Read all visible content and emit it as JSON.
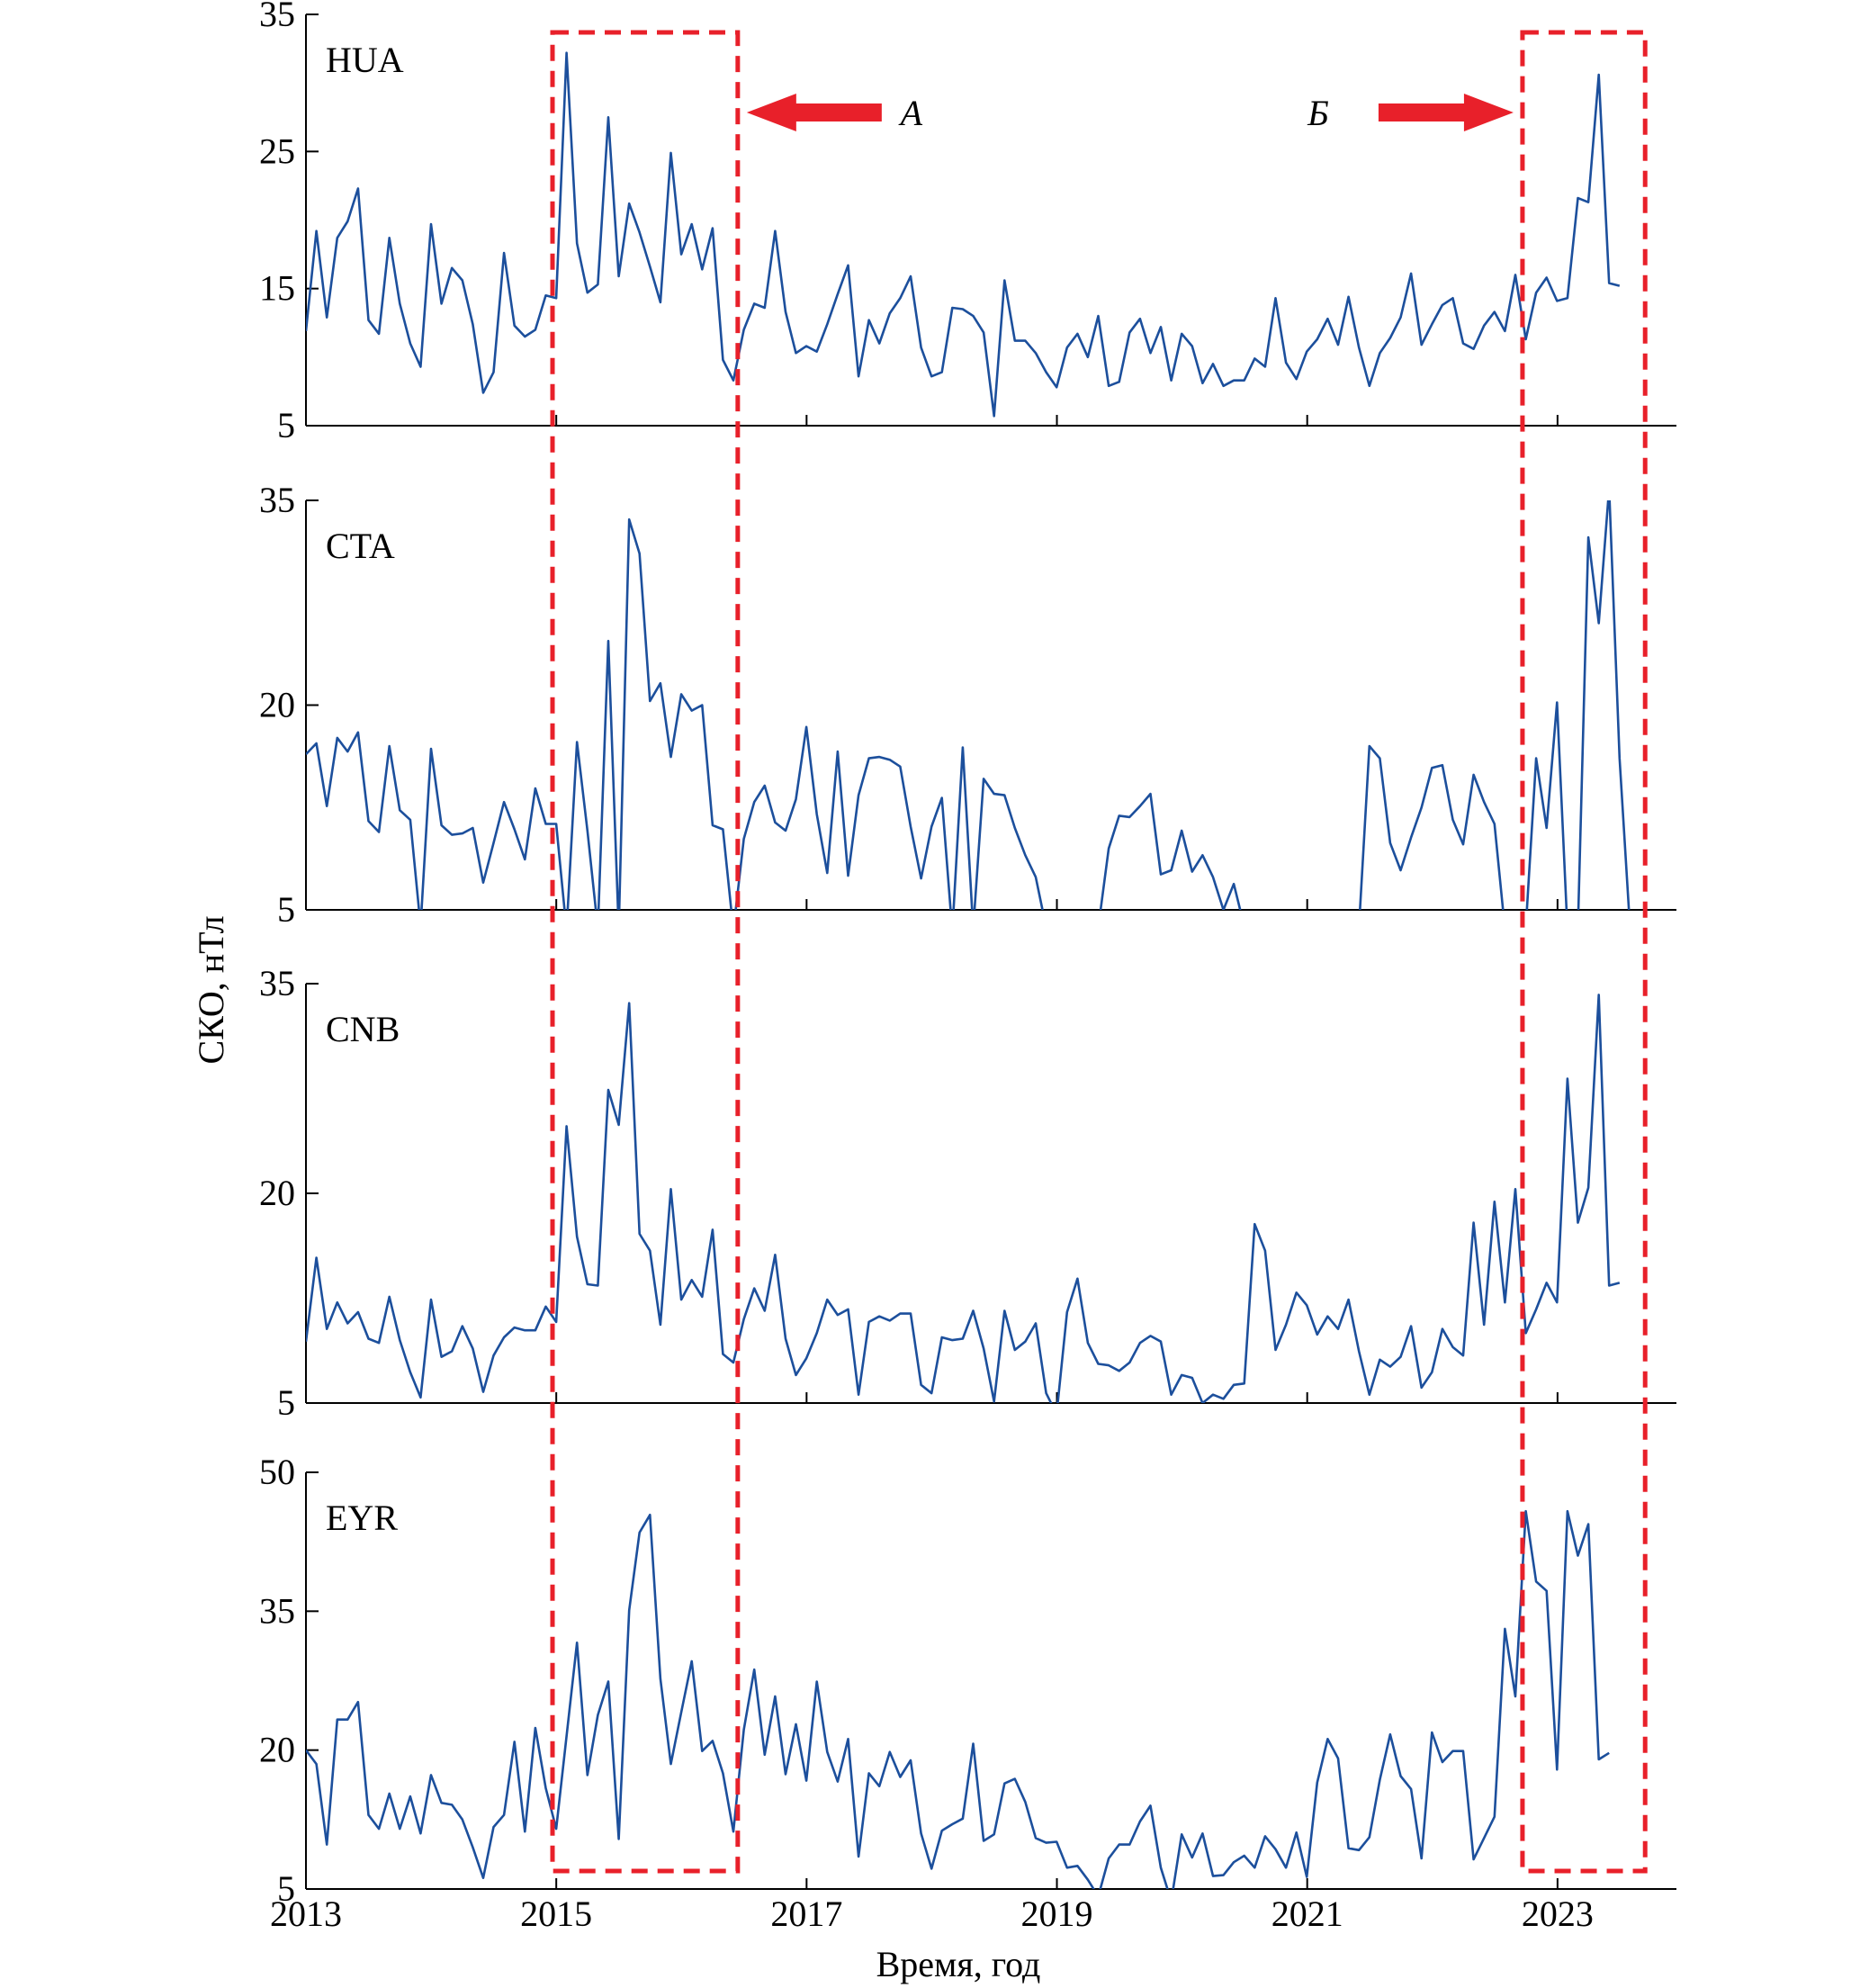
{
  "chart_data": {
    "type": "line",
    "xlabel": "Время, год",
    "ylabel": "СКО, нТл",
    "xlim": [
      2013.0,
      2023.95
    ],
    "x_ticks": [
      "2013",
      "2015",
      "2017",
      "2019",
      "2021",
      "2023"
    ],
    "line_color": "#1c4f9c",
    "highlight_color": "#e8202a",
    "panels": [
      {
        "station": "HUA",
        "ylim": [
          5,
          35
        ],
        "y_ticks": [
          "5",
          "15",
          "25",
          "35"
        ],
        "start": 2013.0,
        "step": 0.0833,
        "values": [
          11.9,
          19.2,
          12.9,
          18.7,
          19.9,
          22.3,
          12.7,
          11.7,
          18.7,
          13.9,
          11.0,
          9.3,
          19.7,
          13.9,
          16.5,
          15.6,
          12.4,
          7.4,
          8.9,
          17.6,
          12.3,
          11.5,
          12.0,
          14.5,
          14.3,
          32.2,
          18.3,
          14.7,
          15.3,
          27.5,
          15.9,
          21.2,
          19.1,
          16.6,
          14.0,
          24.9,
          17.5,
          19.7,
          16.4,
          19.4,
          9.8,
          8.3,
          12.0,
          13.9,
          13.6,
          19.2,
          13.3,
          10.3,
          10.8,
          10.4,
          12.4,
          14.6,
          16.7,
          8.6,
          12.7,
          11.0,
          13.2,
          14.3,
          15.9,
          10.7,
          8.6,
          8.9,
          13.6,
          13.5,
          13.0,
          11.8,
          5.7,
          15.6,
          11.2,
          11.2,
          10.3,
          8.9,
          7.8,
          10.7,
          11.7,
          10.0,
          13.0,
          7.9,
          8.2,
          11.8,
          12.8,
          10.3,
          12.2,
          8.3,
          11.7,
          10.8,
          8.1,
          9.5,
          7.9,
          8.3,
          8.3,
          9.9,
          9.3,
          14.3,
          9.6,
          8.4,
          10.4,
          11.3,
          12.8,
          10.9,
          14.4,
          10.7,
          7.9,
          10.3,
          11.4,
          12.9,
          16.1,
          10.9,
          12.4,
          13.8,
          14.3,
          11.0,
          10.6,
          12.3,
          13.3,
          11.9,
          16.0,
          11.3,
          14.7,
          15.8,
          14.1,
          14.3,
          21.6,
          21.3,
          30.6,
          15.4,
          15.2
        ]
      },
      {
        "station": "CTA",
        "ylim": [
          5,
          35
        ],
        "y_ticks": [
          "5",
          "20",
          "35"
        ],
        "start": 2013.0,
        "step": 0.0833,
        "values": [
          16.4,
          17.2,
          12.6,
          17.6,
          16.6,
          18.0,
          11.5,
          10.7,
          17.0,
          12.3,
          11.6,
          3.8,
          16.8,
          11.2,
          10.5,
          10.6,
          11.0,
          7.0,
          9.9,
          12.9,
          10.9,
          8.7,
          13.9,
          11.3,
          11.3,
          3.5,
          17.3,
          10.8,
          3.6,
          24.7,
          3.5,
          33.6,
          31.1,
          20.3,
          21.6,
          16.2,
          20.8,
          19.6,
          20.0,
          11.2,
          10.9,
          3.5,
          10.2,
          12.9,
          14.1,
          11.4,
          10.8,
          13.1,
          18.4,
          12.0,
          7.7,
          16.6,
          7.5,
          13.4,
          16.1,
          16.2,
          16.0,
          15.5,
          11.1,
          7.3,
          11.1,
          13.2,
          3.4,
          16.9,
          3.6,
          14.6,
          13.5,
          13.4,
          11.0,
          9.0,
          7.4,
          3.7,
          3.7,
          3.7,
          3.7,
          3.7,
          3.7,
          9.5,
          11.9,
          11.8,
          12.6,
          13.5,
          7.6,
          7.9,
          10.8,
          7.8,
          9.0,
          7.4,
          5.0,
          6.9,
          3.8,
          3.7,
          3.7,
          3.7,
          3.7,
          3.7,
          3.7,
          3.7,
          3.7,
          3.7,
          3.7,
          3.7,
          17.0,
          16.1,
          9.9,
          7.9,
          10.3,
          12.5,
          15.4,
          15.6,
          11.6,
          9.8,
          14.9,
          12.9,
          11.3,
          3.6,
          3.6,
          3.7,
          16.1,
          11.0,
          20.2,
          3.5,
          3.6,
          32.3,
          26.0,
          35.9,
          16.1,
          3.7
        ]
      },
      {
        "station": "CNB",
        "ylim": [
          5,
          35
        ],
        "y_ticks": [
          "5",
          "20",
          "35"
        ],
        "start": 2013.0,
        "step": 0.0833,
        "values": [
          9.4,
          15.4,
          10.3,
          12.2,
          10.7,
          11.5,
          9.6,
          9.3,
          12.6,
          9.5,
          7.2,
          5.4,
          12.4,
          8.3,
          8.7,
          10.5,
          8.9,
          5.8,
          8.4,
          9.7,
          10.4,
          10.2,
          10.2,
          11.9,
          10.8,
          24.8,
          16.9,
          13.5,
          13.4,
          27.4,
          24.9,
          33.6,
          17.1,
          15.9,
          10.6,
          20.3,
          12.4,
          13.8,
          12.6,
          17.4,
          8.5,
          7.9,
          11.0,
          13.2,
          11.6,
          15.6,
          9.6,
          7.0,
          8.2,
          10.0,
          12.4,
          11.3,
          11.7,
          5.6,
          10.8,
          11.2,
          10.9,
          11.4,
          11.4,
          6.3,
          5.7,
          9.7,
          9.5,
          9.6,
          11.6,
          8.9,
          5.1,
          11.6,
          8.8,
          9.4,
          10.7,
          5.7,
          4.2,
          11.5,
          13.9,
          9.3,
          7.8,
          7.7,
          7.3,
          7.9,
          9.3,
          9.8,
          9.4,
          5.6,
          7.0,
          6.8,
          5.0,
          5.6,
          5.3,
          6.3,
          6.4,
          17.8,
          15.9,
          8.8,
          10.6,
          12.9,
          12.0,
          9.9,
          11.2,
          10.3,
          12.4,
          8.7,
          5.6,
          8.1,
          7.6,
          8.3,
          10.5,
          6.1,
          7.2,
          10.3,
          9.0,
          8.4,
          17.9,
          10.6,
          19.4,
          12.2,
          20.3,
          10.0,
          11.7,
          13.6,
          12.2,
          28.2,
          17.9,
          20.4,
          34.2,
          13.4,
          13.6
        ]
      },
      {
        "station": "EYR",
        "ylim": [
          5,
          50
        ],
        "y_ticks": [
          "5",
          "20",
          "35",
          "50"
        ],
        "start": 2013.0,
        "step": 0.0833,
        "values": [
          20.0,
          18.5,
          9.8,
          23.3,
          23.3,
          25.2,
          13.0,
          11.5,
          15.3,
          11.5,
          15.0,
          11.0,
          17.3,
          14.3,
          14.1,
          12.5,
          9.5,
          6.2,
          11.7,
          13.0,
          20.9,
          11.2,
          22.4,
          15.9,
          11.5,
          21.5,
          31.6,
          17.3,
          23.8,
          27.4,
          10.4,
          35.1,
          43.5,
          45.4,
          27.7,
          18.5,
          24.1,
          29.6,
          19.9,
          21.0,
          17.5,
          11.2,
          22.2,
          28.7,
          19.5,
          25.8,
          17.4,
          22.8,
          16.7,
          27.4,
          19.8,
          16.6,
          21.2,
          8.5,
          17.5,
          16.1,
          19.8,
          17.1,
          18.9,
          11.0,
          7.2,
          11.3,
          12.0,
          12.6,
          20.7,
          10.2,
          10.9,
          16.4,
          16.9,
          14.4,
          10.5,
          10.0,
          10.1,
          7.3,
          7.5,
          6.0,
          4.2,
          8.3,
          9.8,
          9.8,
          12.3,
          14.0,
          7.3,
          3.7,
          10.9,
          8.4,
          11.0,
          6.4,
          6.5,
          7.9,
          8.6,
          7.3,
          10.7,
          9.3,
          7.3,
          11.1,
          6.3,
          16.5,
          21.2,
          19.1,
          9.4,
          9.2,
          10.6,
          16.8,
          21.7,
          17.2,
          15.8,
          8.3,
          21.9,
          18.7,
          19.9,
          19.9,
          8.2,
          10.5,
          12.8,
          33.1,
          25.8,
          45.8,
          38.2,
          37.2,
          17.9,
          45.8,
          41.0,
          44.4,
          19.0,
          19.7
        ]
      }
    ],
    "annotations": [
      {
        "label": "А",
        "start": 2014.97,
        "end": 2016.45,
        "arrow_direction": "left"
      },
      {
        "label": "Б",
        "start": 2022.72,
        "end": 2023.7,
        "arrow_direction": "right"
      }
    ]
  }
}
